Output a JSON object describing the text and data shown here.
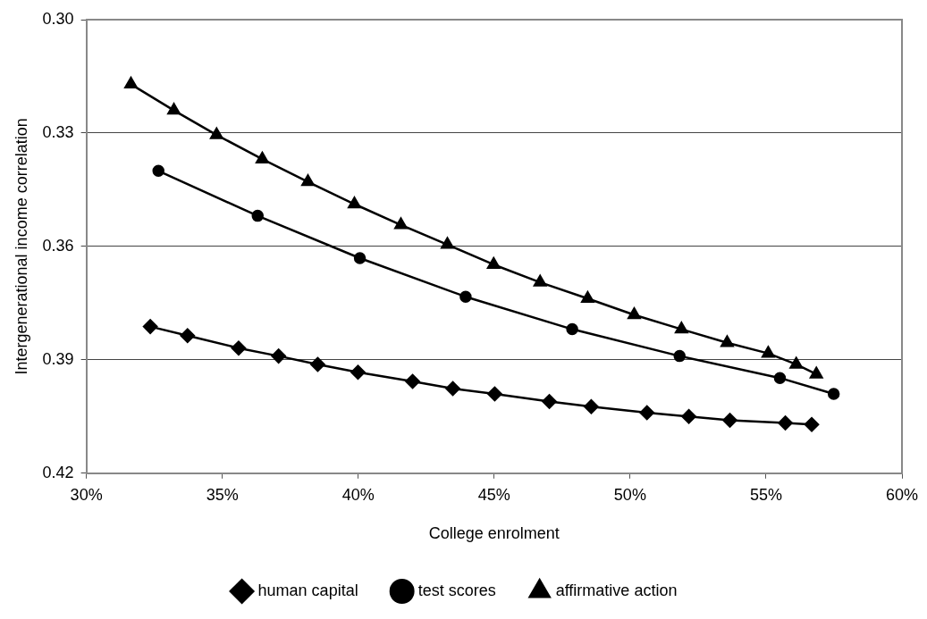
{
  "chart_data": {
    "type": "line",
    "xlabel": "College enrolment",
    "ylabel": "Intergenerational income correlation",
    "xlim": [
      30,
      60
    ],
    "xticks": [
      {
        "value": 30,
        "label": "30%"
      },
      {
        "value": 35,
        "label": "35%"
      },
      {
        "value": 40,
        "label": "40%"
      },
      {
        "value": 45,
        "label": "45%"
      },
      {
        "value": 50,
        "label": "50%"
      },
      {
        "value": 55,
        "label": "55%"
      },
      {
        "value": 60,
        "label": "60%"
      }
    ],
    "ylim": [
      0.42,
      0.3
    ],
    "yticks": [
      {
        "value": 0.3,
        "label": "0.30"
      },
      0.33,
      0.36,
      0.39,
      0.42
    ],
    "grid": "y",
    "legend": "bottom",
    "line_style": "solid",
    "series": [
      {
        "name": "human capital",
        "color": "#000000",
        "marker": "diamond",
        "x": [
          32.35,
          33.72,
          35.6,
          37.07,
          38.51,
          39.99,
          42.0,
          43.48,
          45.02,
          47.03,
          48.57,
          50.62,
          52.16,
          53.67,
          55.71,
          56.68
        ],
        "values": [
          0.3812,
          0.3836,
          0.3869,
          0.389,
          0.3912,
          0.3933,
          0.3957,
          0.3976,
          0.399,
          0.401,
          0.4024,
          0.404,
          0.405,
          0.406,
          0.4067,
          0.4071
        ]
      },
      {
        "name": "test scores",
        "color": "#000000",
        "marker": "circle",
        "x": [
          32.65,
          36.3,
          40.06,
          43.95,
          47.87,
          51.82,
          55.51,
          57.49
        ],
        "values": [
          0.34,
          0.3519,
          0.3631,
          0.3733,
          0.3819,
          0.389,
          0.3948,
          0.399
        ]
      },
      {
        "name": "affirmative action",
        "color": "#000000",
        "marker": "triangle",
        "x": [
          31.64,
          33.22,
          34.79,
          36.47,
          38.15,
          39.86,
          41.57,
          43.28,
          44.98,
          46.69,
          48.44,
          50.15,
          51.89,
          53.57,
          55.08,
          56.11,
          56.85
        ],
        "values": [
          0.3171,
          0.324,
          0.3305,
          0.3369,
          0.3429,
          0.3488,
          0.3543,
          0.3595,
          0.3648,
          0.3695,
          0.3738,
          0.3781,
          0.3819,
          0.3855,
          0.3883,
          0.3912,
          0.3938
        ]
      }
    ]
  }
}
